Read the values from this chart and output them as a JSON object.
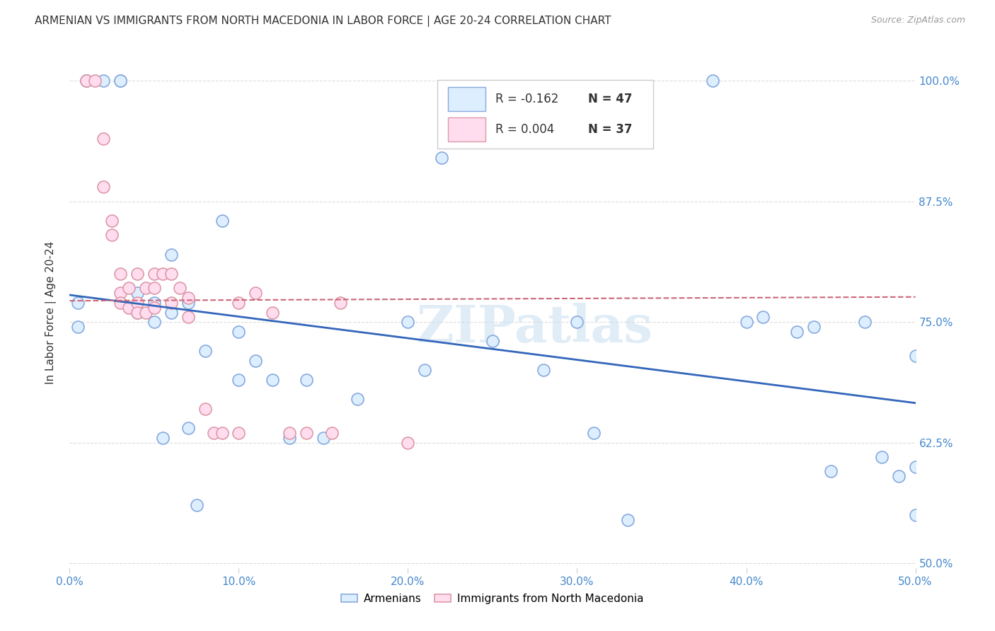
{
  "title": "ARMENIAN VS IMMIGRANTS FROM NORTH MACEDONIA IN LABOR FORCE | AGE 20-24 CORRELATION CHART",
  "source": "Source: ZipAtlas.com",
  "ylabel": "In Labor Force | Age 20-24",
  "xlim": [
    0.0,
    0.5
  ],
  "ylim": [
    0.495,
    1.025
  ],
  "ytick_labels": [
    "50.0%",
    "62.5%",
    "75.0%",
    "87.5%",
    "100.0%"
  ],
  "ytick_values": [
    0.5,
    0.625,
    0.75,
    0.875,
    1.0
  ],
  "xtick_labels": [
    "0.0%",
    "10.0%",
    "20.0%",
    "30.0%",
    "40.0%",
    "50.0%"
  ],
  "xtick_values": [
    0.0,
    0.1,
    0.2,
    0.3,
    0.4,
    0.5
  ],
  "legend_blue_R": "R = -0.162",
  "legend_blue_N": "N = 47",
  "legend_pink_R": "R = 0.004",
  "legend_pink_N": "N = 37",
  "blue_fill": "#ddeeff",
  "blue_edge": "#88aadd",
  "pink_fill": "#ffddee",
  "pink_edge": "#dd99aa",
  "blue_line_color": "#3366bb",
  "pink_line_color": "#cc6677",
  "background_color": "#ffffff",
  "watermark": "ZIPatlas",
  "blue_scatter_x": [
    0.005,
    0.005,
    0.01,
    0.01,
    0.02,
    0.03,
    0.03,
    0.04,
    0.04,
    0.05,
    0.05,
    0.055,
    0.06,
    0.06,
    0.07,
    0.07,
    0.075,
    0.08,
    0.09,
    0.1,
    0.1,
    0.11,
    0.12,
    0.13,
    0.14,
    0.15,
    0.17,
    0.2,
    0.21,
    0.22,
    0.25,
    0.28,
    0.3,
    0.31,
    0.33,
    0.38,
    0.4,
    0.41,
    0.43,
    0.44,
    0.45,
    0.47,
    0.48,
    0.49,
    0.5,
    0.5,
    0.5
  ],
  "blue_scatter_y": [
    0.77,
    0.745,
    1.0,
    1.0,
    1.0,
    1.0,
    1.0,
    0.78,
    0.76,
    0.77,
    0.75,
    0.63,
    0.82,
    0.76,
    0.77,
    0.64,
    0.56,
    0.72,
    0.855,
    0.74,
    0.69,
    0.71,
    0.69,
    0.63,
    0.69,
    0.63,
    0.67,
    0.75,
    0.7,
    0.92,
    0.73,
    0.7,
    0.75,
    0.635,
    0.545,
    1.0,
    0.75,
    0.755,
    0.74,
    0.745,
    0.595,
    0.75,
    0.61,
    0.59,
    0.715,
    0.6,
    0.55
  ],
  "pink_scatter_x": [
    0.01,
    0.015,
    0.02,
    0.02,
    0.025,
    0.025,
    0.03,
    0.03,
    0.03,
    0.035,
    0.035,
    0.04,
    0.04,
    0.04,
    0.045,
    0.045,
    0.05,
    0.05,
    0.05,
    0.055,
    0.06,
    0.06,
    0.065,
    0.07,
    0.07,
    0.08,
    0.085,
    0.09,
    0.1,
    0.1,
    0.11,
    0.12,
    0.13,
    0.14,
    0.155,
    0.16,
    0.2
  ],
  "pink_scatter_y": [
    1.0,
    1.0,
    0.94,
    0.89,
    0.855,
    0.84,
    0.8,
    0.78,
    0.77,
    0.785,
    0.765,
    0.8,
    0.77,
    0.76,
    0.785,
    0.76,
    0.8,
    0.785,
    0.765,
    0.8,
    0.8,
    0.77,
    0.785,
    0.775,
    0.755,
    0.66,
    0.635,
    0.635,
    0.77,
    0.635,
    0.78,
    0.76,
    0.635,
    0.635,
    0.635,
    0.77,
    0.625
  ],
  "blue_trendline_x": [
    0.0,
    0.5
  ],
  "blue_trendline_y": [
    0.778,
    0.666
  ],
  "pink_trendline_x": [
    0.0,
    0.5
  ],
  "pink_trendline_y": [
    0.772,
    0.776
  ],
  "title_fontsize": 11,
  "axis_label_fontsize": 11,
  "tick_fontsize": 11,
  "legend_fontsize": 12
}
